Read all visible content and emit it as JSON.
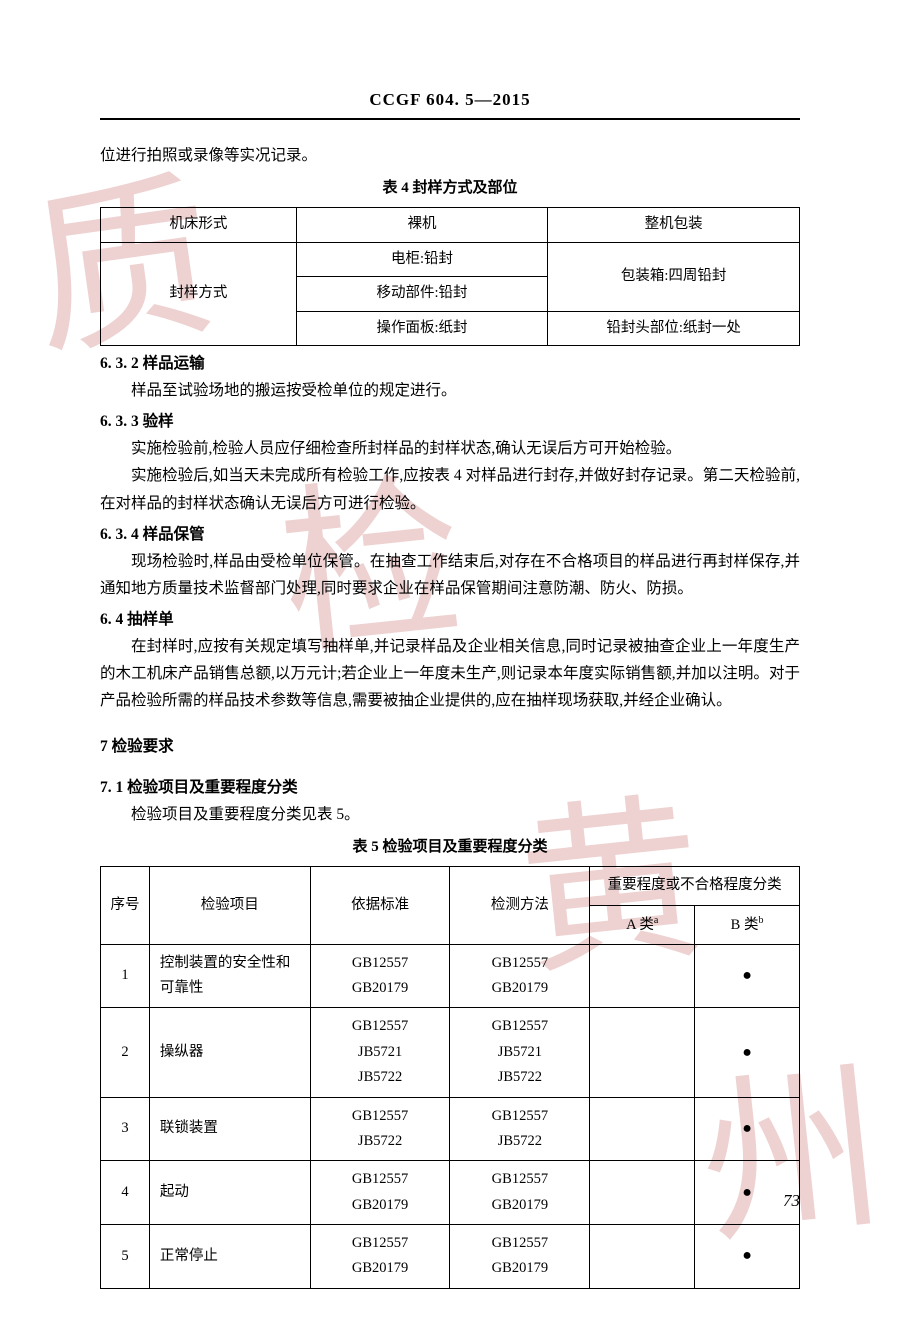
{
  "header": {
    "code": "CCGF 604. 5—2015"
  },
  "intro_line": "位进行拍照或录像等实况记录。",
  "table4": {
    "caption": "表 4   封样方式及部位",
    "rows": {
      "r1c1": "机床形式",
      "r1c2": "裸机",
      "r1c3": "整机包装",
      "r2c1": "封样方式",
      "r2_1": "电柜:铅封",
      "r2_2": "移动部件:铅封",
      "r2_3": "操作面板:纸封",
      "r2c3a": "包装箱:四周铅封",
      "r2c3b": "铅封头部位:纸封一处"
    }
  },
  "sec632": {
    "heading": "6. 3. 2    样品运输",
    "p1": "样品至试验场地的搬运按受检单位的规定进行。"
  },
  "sec633": {
    "heading": "6. 3. 3    验样",
    "p1": "实施检验前,检验人员应仔细检查所封样品的封样状态,确认无误后方可开始检验。",
    "p2": "实施检验后,如当天未完成所有检验工作,应按表 4 对样品进行封存,并做好封存记录。第二天检验前,在对样品的封样状态确认无误后方可进行检验。"
  },
  "sec634": {
    "heading": "6. 3. 4    样品保管",
    "p1": "现场检验时,样品由受检单位保管。在抽查工作结束后,对存在不合格项目的样品进行再封样保存,并通知地方质量技术监督部门处理,同时要求企业在样品保管期间注意防潮、防火、防损。"
  },
  "sec64": {
    "heading": "6. 4   抽样单",
    "p1": "在封样时,应按有关规定填写抽样单,并记录样品及企业相关信息,同时记录被抽查企业上一年度生产的木工机床产品销售总额,以万元计;若企业上一年度未生产,则记录本年度实际销售额,并加以注明。对于产品检验所需的样品技术参数等信息,需要被抽企业提供的,应在抽样现场获取,并经企业确认。"
  },
  "sec7": {
    "heading": "7   检验要求"
  },
  "sec71": {
    "heading": "7. 1   检验项目及重要程度分类",
    "p1": "检验项目及重要程度分类见表 5。"
  },
  "table5": {
    "caption": "表 5    检验项目及重要程度分类",
    "headers": {
      "h1": "序号",
      "h2": "检验项目",
      "h3": "依据标准",
      "h4": "检测方法",
      "h5": "重要程度或不合格程度分类",
      "h5a": "A 类",
      "h5a_sup": "a",
      "h5b": "B 类",
      "h5b_sup": "b"
    },
    "rows": [
      {
        "n": "1",
        "item": "控制装置的安全性和可靠性",
        "std": "GB12557\nGB20179",
        "method": "GB12557\nGB20179",
        "a": "",
        "b": "●"
      },
      {
        "n": "2",
        "item": "操纵器",
        "std": "GB12557\nJB5721\nJB5722",
        "method": "GB12557\nJB5721\nJB5722",
        "a": "",
        "b": "●"
      },
      {
        "n": "3",
        "item": "联锁装置",
        "std": "GB12557\nJB5722",
        "method": "GB12557\nJB5722",
        "a": "",
        "b": "●"
      },
      {
        "n": "4",
        "item": "起动",
        "std": "GB12557\nGB20179",
        "method": "GB12557\nGB20179",
        "a": "",
        "b": "●"
      },
      {
        "n": "5",
        "item": "正常停止",
        "std": "GB12557\nGB20179",
        "method": "GB12557\nGB20179",
        "a": "",
        "b": "●"
      }
    ]
  },
  "page_number": "73",
  "watermark_chars": {
    "c1": "质",
    "c2": "检",
    "c3": "黄",
    "c4": "州"
  },
  "colors": {
    "text": "#000000",
    "watermark": "rgba(160,0,0,0.18)",
    "background": "#ffffff"
  }
}
